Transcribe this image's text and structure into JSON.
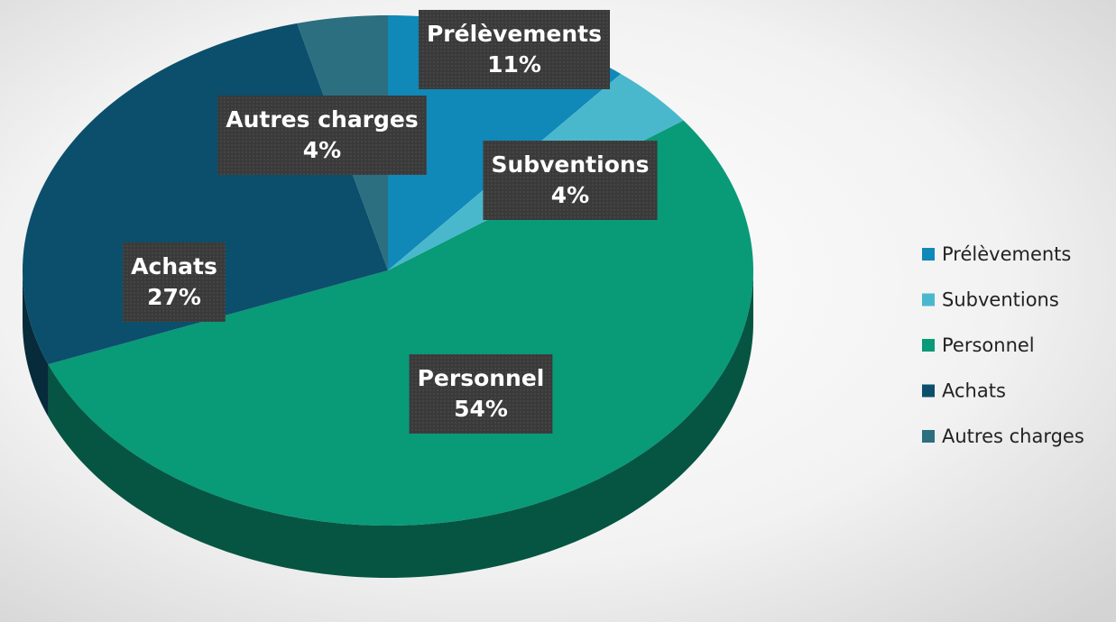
{
  "chart_data": {
    "type": "pie3d",
    "categories": [
      "Prélèvements",
      "Subventions",
      "Personnel",
      "Achats",
      "Autres charges"
    ],
    "values": [
      11,
      4,
      54,
      27,
      4
    ],
    "value_labels": [
      "11%",
      "4%",
      "54%",
      "27%",
      "4%"
    ],
    "colors": [
      "#1088b8",
      "#4ab8cc",
      "#099a78",
      "#0c4f6c",
      "#2b6f80"
    ],
    "legend": "right"
  }
}
